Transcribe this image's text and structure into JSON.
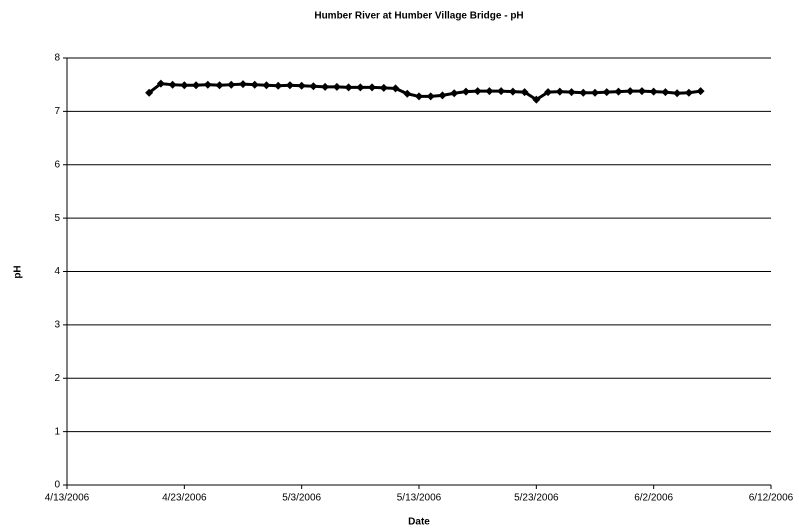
{
  "chart_data": {
    "type": "line",
    "title": "Humber River at Humber Village Bridge - pH",
    "x_label": "Date",
    "y_label": "pH",
    "color": "#000000",
    "x": [
      "4/20/2006",
      "4/21/2006",
      "4/22/2006",
      "4/23/2006",
      "4/24/2006",
      "4/25/2006",
      "4/26/2006",
      "4/27/2006",
      "4/28/2006",
      "4/29/2006",
      "4/30/2006",
      "5/1/2006",
      "5/2/2006",
      "5/3/2006",
      "5/4/2006",
      "5/5/2006",
      "5/6/2006",
      "5/7/2006",
      "5/8/2006",
      "5/9/2006",
      "5/10/2006",
      "5/11/2006",
      "5/12/2006",
      "5/13/2006",
      "5/14/2006",
      "5/15/2006",
      "5/16/2006",
      "5/17/2006",
      "5/18/2006",
      "5/19/2006",
      "5/20/2006",
      "5/21/2006",
      "5/22/2006",
      "5/23/2006",
      "5/24/2006",
      "5/25/2006",
      "5/26/2006",
      "5/27/2006",
      "5/28/2006",
      "5/29/2006",
      "5/30/2006",
      "5/31/2006",
      "6/1/2006",
      "6/2/2006",
      "6/3/2006",
      "6/4/2006",
      "6/5/2006",
      "6/6/2006"
    ],
    "values": [
      7.35,
      7.52,
      7.5,
      7.49,
      7.49,
      7.5,
      7.49,
      7.5,
      7.51,
      7.5,
      7.49,
      7.48,
      7.49,
      7.48,
      7.47,
      7.46,
      7.46,
      7.45,
      7.45,
      7.45,
      7.44,
      7.43,
      7.33,
      7.28,
      7.28,
      7.3,
      7.34,
      7.37,
      7.38,
      7.38,
      7.38,
      7.37,
      7.36,
      7.22,
      7.36,
      7.37,
      7.36,
      7.35,
      7.35,
      7.36,
      7.37,
      7.38,
      7.38,
      7.37,
      7.36,
      7.34,
      7.35,
      7.38
    ],
    "xlim": [
      "4/13/2006",
      "6/12/2006"
    ],
    "xticks": [
      "4/13/2006",
      "4/23/2006",
      "5/3/2006",
      "5/13/2006",
      "5/23/2006",
      "6/2/2006",
      "6/12/2006"
    ],
    "ylim": [
      0,
      8
    ],
    "yticks": [
      0,
      1,
      2,
      3,
      4,
      5,
      6,
      7,
      8
    ],
    "grid": true
  }
}
